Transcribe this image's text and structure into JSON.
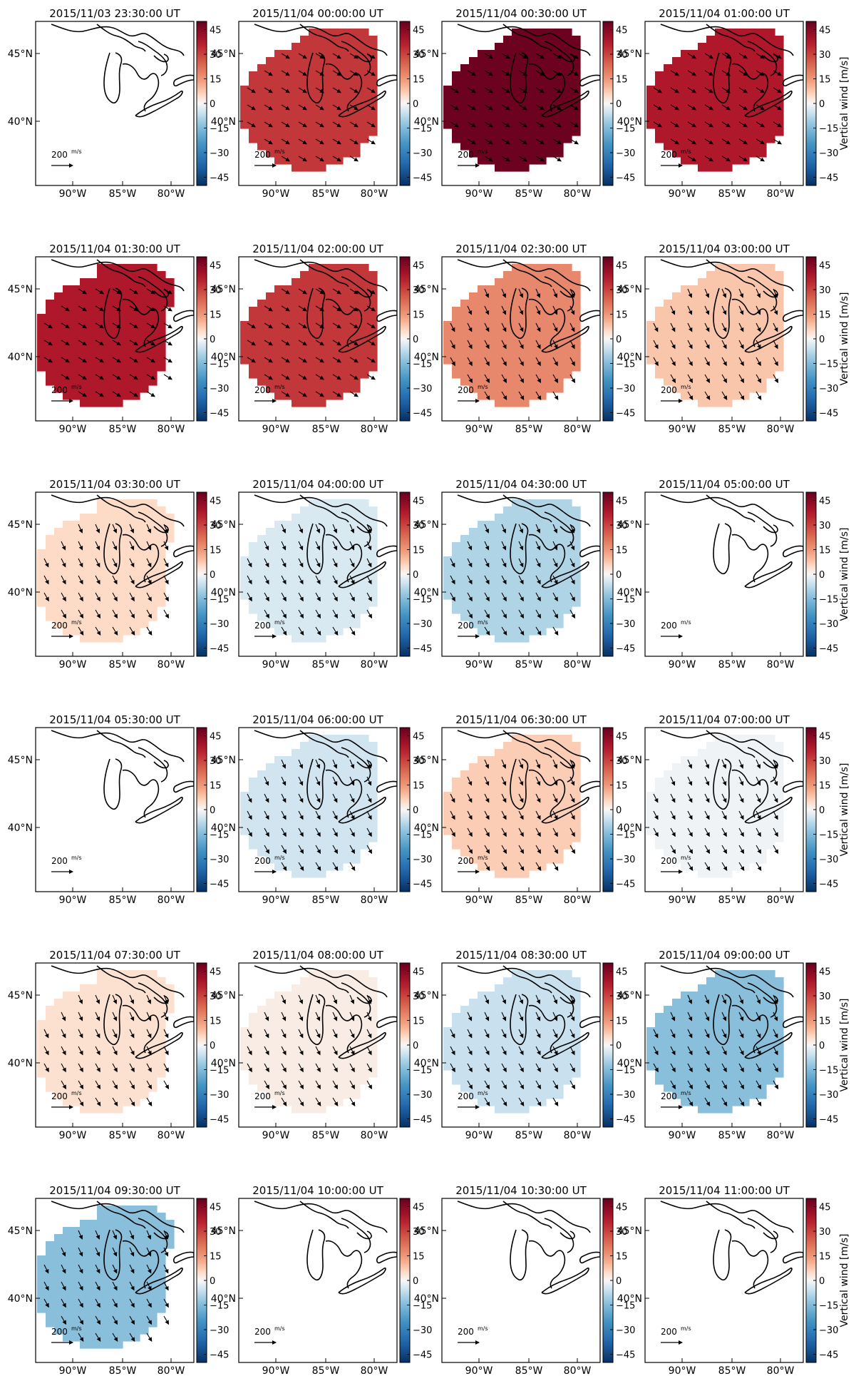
{
  "figure": {
    "colorbar": {
      "ticks": [
        45,
        30,
        15,
        0,
        -15,
        -30,
        -45
      ],
      "range": [
        -50,
        50
      ],
      "label": "Vertical wind [m/s]",
      "colormap": "RdBu_r",
      "colors": {
        "neg": "#053061",
        "mid": "#f7f7f7",
        "pos": "#67001f"
      }
    },
    "map": {
      "x_ticks": [
        "90°W",
        "85°W",
        "80°W"
      ],
      "y_ticks": [
        "45°N",
        "40°N"
      ],
      "reference_vector": {
        "magnitude": "200",
        "unit": "m/s"
      },
      "coastline": "Great Lakes region"
    }
  },
  "chart_data": [
    {
      "type": "heatmap",
      "title": "2015/11/03 23:30:00 UT",
      "value": null,
      "has_data": false,
      "show_cbar_label": false
    },
    {
      "type": "heatmap",
      "title": "2015/11/04 00:00:00 UT",
      "value": 32,
      "has_data": true,
      "show_cbar_label": false
    },
    {
      "type": "heatmap",
      "title": "2015/11/04 00:30:00 UT",
      "value": 49,
      "has_data": true,
      "show_cbar_label": false
    },
    {
      "type": "heatmap",
      "title": "2015/11/04 01:00:00 UT",
      "value": 38,
      "has_data": true,
      "show_cbar_label": true
    },
    {
      "type": "heatmap",
      "title": "2015/11/04 01:30:00 UT",
      "value": 38,
      "has_data": true,
      "show_cbar_label": false
    },
    {
      "type": "heatmap",
      "title": "2015/11/04 02:00:00 UT",
      "value": 32,
      "has_data": true,
      "show_cbar_label": false
    },
    {
      "type": "heatmap",
      "title": "2015/11/04 02:30:00 UT",
      "value": 18,
      "has_data": true,
      "show_cbar_label": false
    },
    {
      "type": "heatmap",
      "title": "2015/11/04 03:00:00 UT",
      "value": 8,
      "has_data": true,
      "show_cbar_label": true
    },
    {
      "type": "heatmap",
      "title": "2015/11/04 03:30:00 UT",
      "value": 5,
      "has_data": true,
      "show_cbar_label": false
    },
    {
      "type": "heatmap",
      "title": "2015/11/04 04:00:00 UT",
      "value": -4,
      "has_data": true,
      "show_cbar_label": false
    },
    {
      "type": "heatmap",
      "title": "2015/11/04 04:30:00 UT",
      "value": -9,
      "has_data": true,
      "show_cbar_label": false
    },
    {
      "type": "heatmap",
      "title": "2015/11/04 05:00:00 UT",
      "value": null,
      "has_data": false,
      "show_cbar_label": true
    },
    {
      "type": "heatmap",
      "title": "2015/11/04 05:30:00 UT",
      "value": null,
      "has_data": false,
      "show_cbar_label": false
    },
    {
      "type": "heatmap",
      "title": "2015/11/04 06:00:00 UT",
      "value": -5,
      "has_data": true,
      "show_cbar_label": false
    },
    {
      "type": "heatmap",
      "title": "2015/11/04 06:30:00 UT",
      "value": 7,
      "has_data": true,
      "show_cbar_label": false
    },
    {
      "type": "heatmap",
      "title": "2015/11/04 07:00:00 UT",
      "value": -1,
      "has_data": true,
      "show_cbar_label": true
    },
    {
      "type": "heatmap",
      "title": "2015/11/04 07:30:00 UT",
      "value": 4,
      "has_data": true,
      "show_cbar_label": false
    },
    {
      "type": "heatmap",
      "title": "2015/11/04 08:00:00 UT",
      "value": 2,
      "has_data": true,
      "show_cbar_label": false
    },
    {
      "type": "heatmap",
      "title": "2015/11/04 08:30:00 UT",
      "value": -6,
      "has_data": true,
      "show_cbar_label": false
    },
    {
      "type": "heatmap",
      "title": "2015/11/04 09:00:00 UT",
      "value": -14,
      "has_data": true,
      "show_cbar_label": true
    },
    {
      "type": "heatmap",
      "title": "2015/11/04 09:30:00 UT",
      "value": -14,
      "has_data": true,
      "show_cbar_label": false
    },
    {
      "type": "heatmap",
      "title": "2015/11/04 10:00:00 UT",
      "value": null,
      "has_data": false,
      "show_cbar_label": false
    },
    {
      "type": "heatmap",
      "title": "2015/11/04 10:30:00 UT",
      "value": null,
      "has_data": false,
      "show_cbar_label": false
    },
    {
      "type": "heatmap",
      "title": "2015/11/04 11:00:00 UT",
      "value": null,
      "has_data": false,
      "show_cbar_label": true
    }
  ]
}
